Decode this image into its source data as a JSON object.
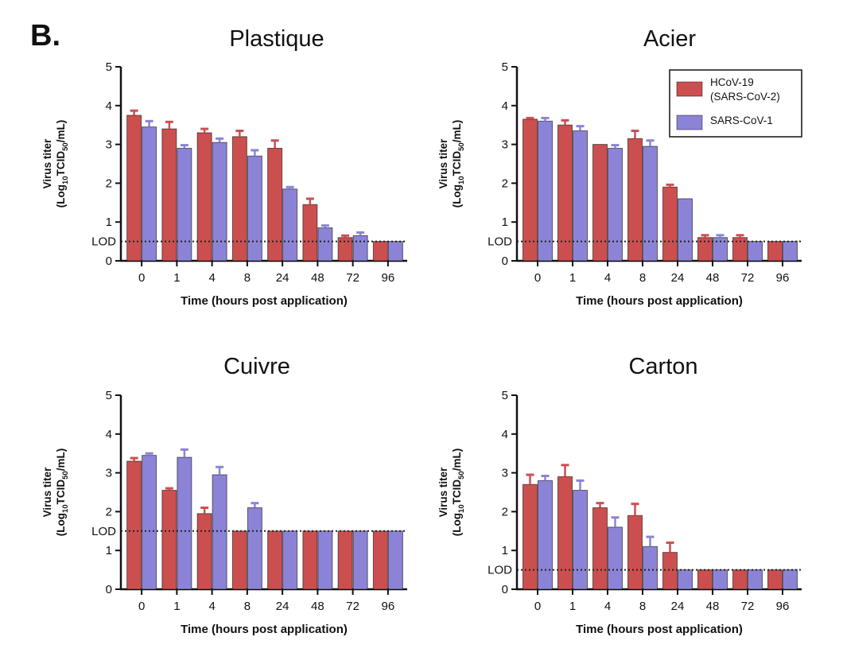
{
  "figure": {
    "panel_letter": "B."
  },
  "colors": {
    "sars_cov_2": "#cc4f4f",
    "sars_cov_1": "#8b84d6",
    "axis": "#111111"
  },
  "legend": {
    "items": [
      {
        "line1": "HCoV-19",
        "line2": "(SARS-CoV-2)",
        "color": "#cc4f4f"
      },
      {
        "line1": "SARS-CoV-1",
        "line2": "",
        "color": "#8b84d6"
      }
    ]
  },
  "chart_data": [
    {
      "type": "bar",
      "title": "Plastique",
      "xlabel": "Time (hours post application)",
      "ylabel": "Virus titer (Log10TCID50/mL)",
      "ylim": [
        0,
        5
      ],
      "yticks": [
        "0",
        "1",
        "2",
        "3",
        "4",
        "5"
      ],
      "lod_label": "LOD",
      "lod": 0.5,
      "categories": [
        "0",
        "1",
        "4",
        "8",
        "24",
        "48",
        "72",
        "96"
      ],
      "series": [
        {
          "name": "HCoV-19 (SARS-CoV-2)",
          "values": [
            3.75,
            3.4,
            3.3,
            3.2,
            2.9,
            1.45,
            0.6,
            0.5
          ],
          "errors": [
            0.12,
            0.18,
            0.1,
            0.15,
            0.2,
            0.15,
            0.05,
            0
          ]
        },
        {
          "name": "SARS-CoV-1",
          "values": [
            3.45,
            2.9,
            3.05,
            2.7,
            1.85,
            0.85,
            0.65,
            0.5
          ],
          "errors": [
            0.15,
            0.08,
            0.1,
            0.15,
            0.05,
            0.06,
            0.08,
            0
          ]
        }
      ]
    },
    {
      "type": "bar",
      "title": "Acier",
      "xlabel": "Time (hours post application)",
      "ylabel": "Virus titer (Log10TCID50/mL)",
      "ylim": [
        0,
        5
      ],
      "yticks": [
        "0",
        "1",
        "2",
        "3",
        "4",
        "5"
      ],
      "lod_label": "LOD",
      "lod": 0.5,
      "categories": [
        "0",
        "1",
        "4",
        "8",
        "24",
        "48",
        "72",
        "96"
      ],
      "legend": "top-right",
      "series": [
        {
          "name": "HCoV-19 (SARS-CoV-2)",
          "values": [
            3.65,
            3.5,
            3.0,
            3.15,
            1.9,
            0.6,
            0.6,
            0.5
          ],
          "errors": [
            0.03,
            0.12,
            0,
            0.2,
            0.06,
            0.06,
            0.06,
            0
          ]
        },
        {
          "name": "SARS-CoV-1",
          "values": [
            3.6,
            3.35,
            2.9,
            2.95,
            1.6,
            0.6,
            0.5,
            0.5
          ],
          "errors": [
            0.08,
            0.12,
            0.08,
            0.15,
            0,
            0.06,
            0,
            0
          ]
        }
      ]
    },
    {
      "type": "bar",
      "title": "Cuivre",
      "xlabel": "Time (hours post application)",
      "ylabel": "Virus titer (Log10TCID50/mL)",
      "ylim": [
        0,
        5
      ],
      "yticks": [
        "0",
        "1",
        "2",
        "3",
        "4",
        "5"
      ],
      "lod_label": "LOD",
      "lod": 1.5,
      "categories": [
        "0",
        "1",
        "4",
        "8",
        "24",
        "48",
        "72",
        "96"
      ],
      "series": [
        {
          "name": "HCoV-19 (SARS-CoV-2)",
          "values": [
            3.3,
            2.55,
            1.95,
            1.5,
            1.5,
            1.5,
            1.5,
            1.5
          ],
          "errors": [
            0.08,
            0.05,
            0.15,
            0,
            0,
            0,
            0,
            0
          ]
        },
        {
          "name": "SARS-CoV-1",
          "values": [
            3.45,
            3.4,
            2.95,
            2.1,
            1.5,
            1.5,
            1.5,
            1.5
          ],
          "errors": [
            0.05,
            0.2,
            0.2,
            0.12,
            0,
            0,
            0,
            0
          ]
        }
      ]
    },
    {
      "type": "bar",
      "title": "Carton",
      "xlabel": "Time (hours post application)",
      "ylabel": "Virus titer (Log10TCID50/mL)",
      "ylim": [
        0,
        5
      ],
      "yticks": [
        "0",
        "1",
        "2",
        "3",
        "4",
        "5"
      ],
      "lod_label": "LOD",
      "lod": 0.5,
      "categories": [
        "0",
        "1",
        "4",
        "8",
        "24",
        "48",
        "72",
        "96"
      ],
      "series": [
        {
          "name": "HCoV-19 (SARS-CoV-2)",
          "values": [
            2.7,
            2.9,
            2.1,
            1.9,
            0.95,
            0.5,
            0.5,
            0.5
          ],
          "errors": [
            0.25,
            0.3,
            0.12,
            0.3,
            0.25,
            0,
            0,
            0
          ]
        },
        {
          "name": "SARS-CoV-1",
          "values": [
            2.8,
            2.55,
            1.6,
            1.1,
            0.5,
            0.5,
            0.5,
            0.5
          ],
          "errors": [
            0.12,
            0.25,
            0.25,
            0.25,
            0,
            0,
            0,
            0
          ]
        }
      ]
    }
  ]
}
